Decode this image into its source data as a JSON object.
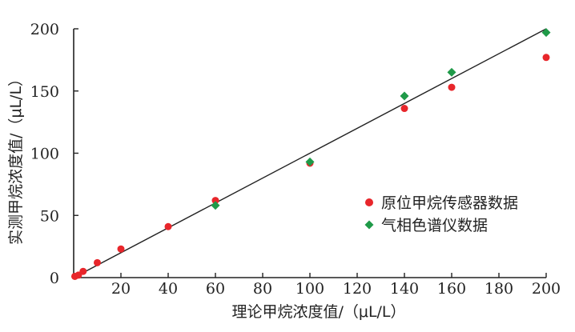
{
  "chart_data": {
    "type": "scatter",
    "xlabel": "理论甲烷浓度值/（μL/L）",
    "ylabel": "实测甲烷浓度值/（μL/L）",
    "xlim": [
      0,
      200
    ],
    "ylim": [
      0,
      200
    ],
    "x_ticks": [
      "20",
      "40",
      "60",
      "80",
      "100",
      "120",
      "140",
      "160",
      "180",
      "200"
    ],
    "y_ticks": [
      "0",
      "50",
      "100",
      "150",
      "200"
    ],
    "grid": false,
    "legend_position": "right-middle",
    "reference_line": {
      "from": [
        0,
        0
      ],
      "to": [
        200,
        200
      ],
      "color": "#222222"
    },
    "series": [
      {
        "name": "原位甲烷传感器数据",
        "marker": "circle",
        "color": "#e8262b",
        "points": [
          [
            0.5,
            1
          ],
          [
            2,
            2
          ],
          [
            4,
            5
          ],
          [
            10,
            12
          ],
          [
            20,
            23
          ],
          [
            40,
            41
          ],
          [
            60,
            62
          ],
          [
            100,
            92
          ],
          [
            140,
            136
          ],
          [
            160,
            153
          ],
          [
            200,
            177
          ]
        ]
      },
      {
        "name": "气相色谱仪数据",
        "marker": "diamond",
        "color": "#1f9a48",
        "points": [
          [
            60,
            58
          ],
          [
            100,
            93
          ],
          [
            140,
            146
          ],
          [
            160,
            165
          ],
          [
            200,
            197
          ]
        ]
      }
    ]
  }
}
